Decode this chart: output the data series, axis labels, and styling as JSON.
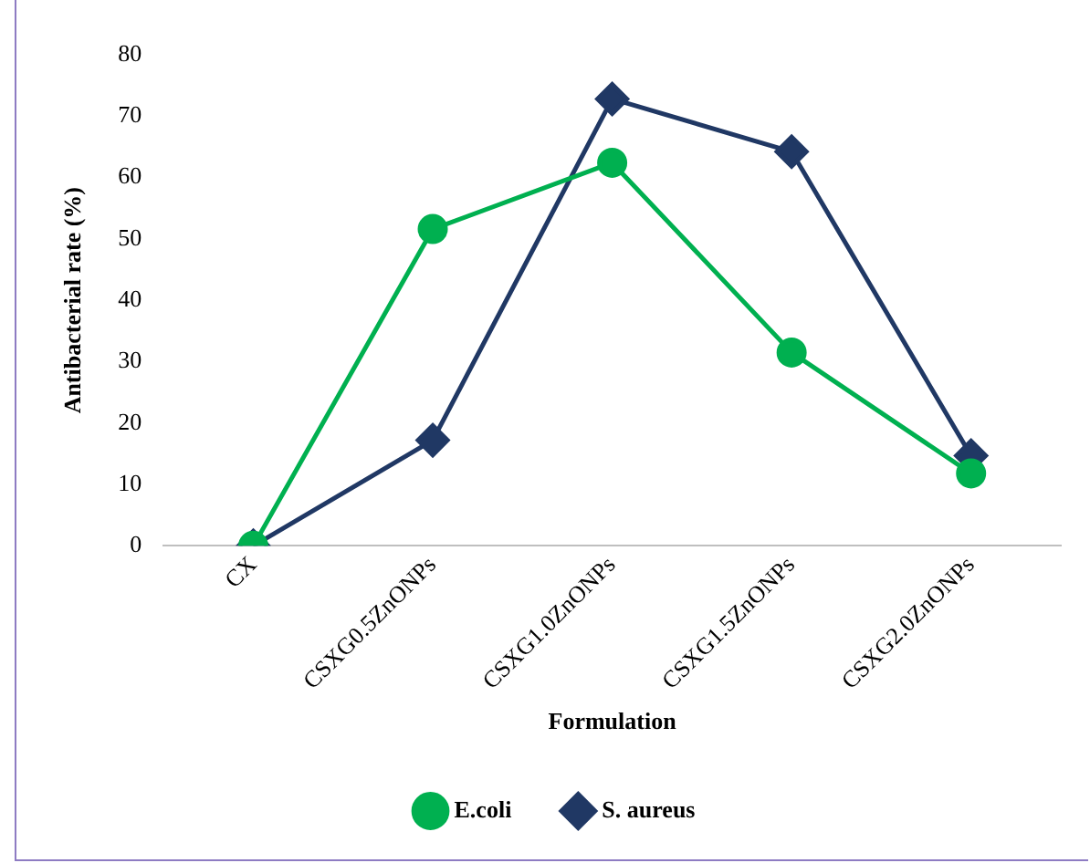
{
  "chart_data": {
    "type": "line",
    "xlabel": "Formulation",
    "ylabel": "Antibacterial rate (%)",
    "categories": [
      "CX",
      "CSXG0.5ZnONPs",
      "CSXG1.0ZnONPs",
      "CSXG1.5ZnONPs",
      "CSXG2.0ZnONPs"
    ],
    "series": [
      {
        "name": "E.coli",
        "color": "#00b050",
        "marker": "circle",
        "values": [
          0,
          51.6,
          62.4,
          31.5,
          11.8
        ]
      },
      {
        "name": "S. aureus",
        "color": "#203864",
        "marker": "diamond",
        "values": [
          0,
          17.2,
          72.8,
          64.2,
          14.7
        ]
      }
    ],
    "ylim": [
      0,
      80
    ],
    "yticks": [
      0,
      10,
      20,
      30,
      40,
      50,
      60,
      70,
      80
    ],
    "grid": false,
    "legend": "bottom"
  }
}
